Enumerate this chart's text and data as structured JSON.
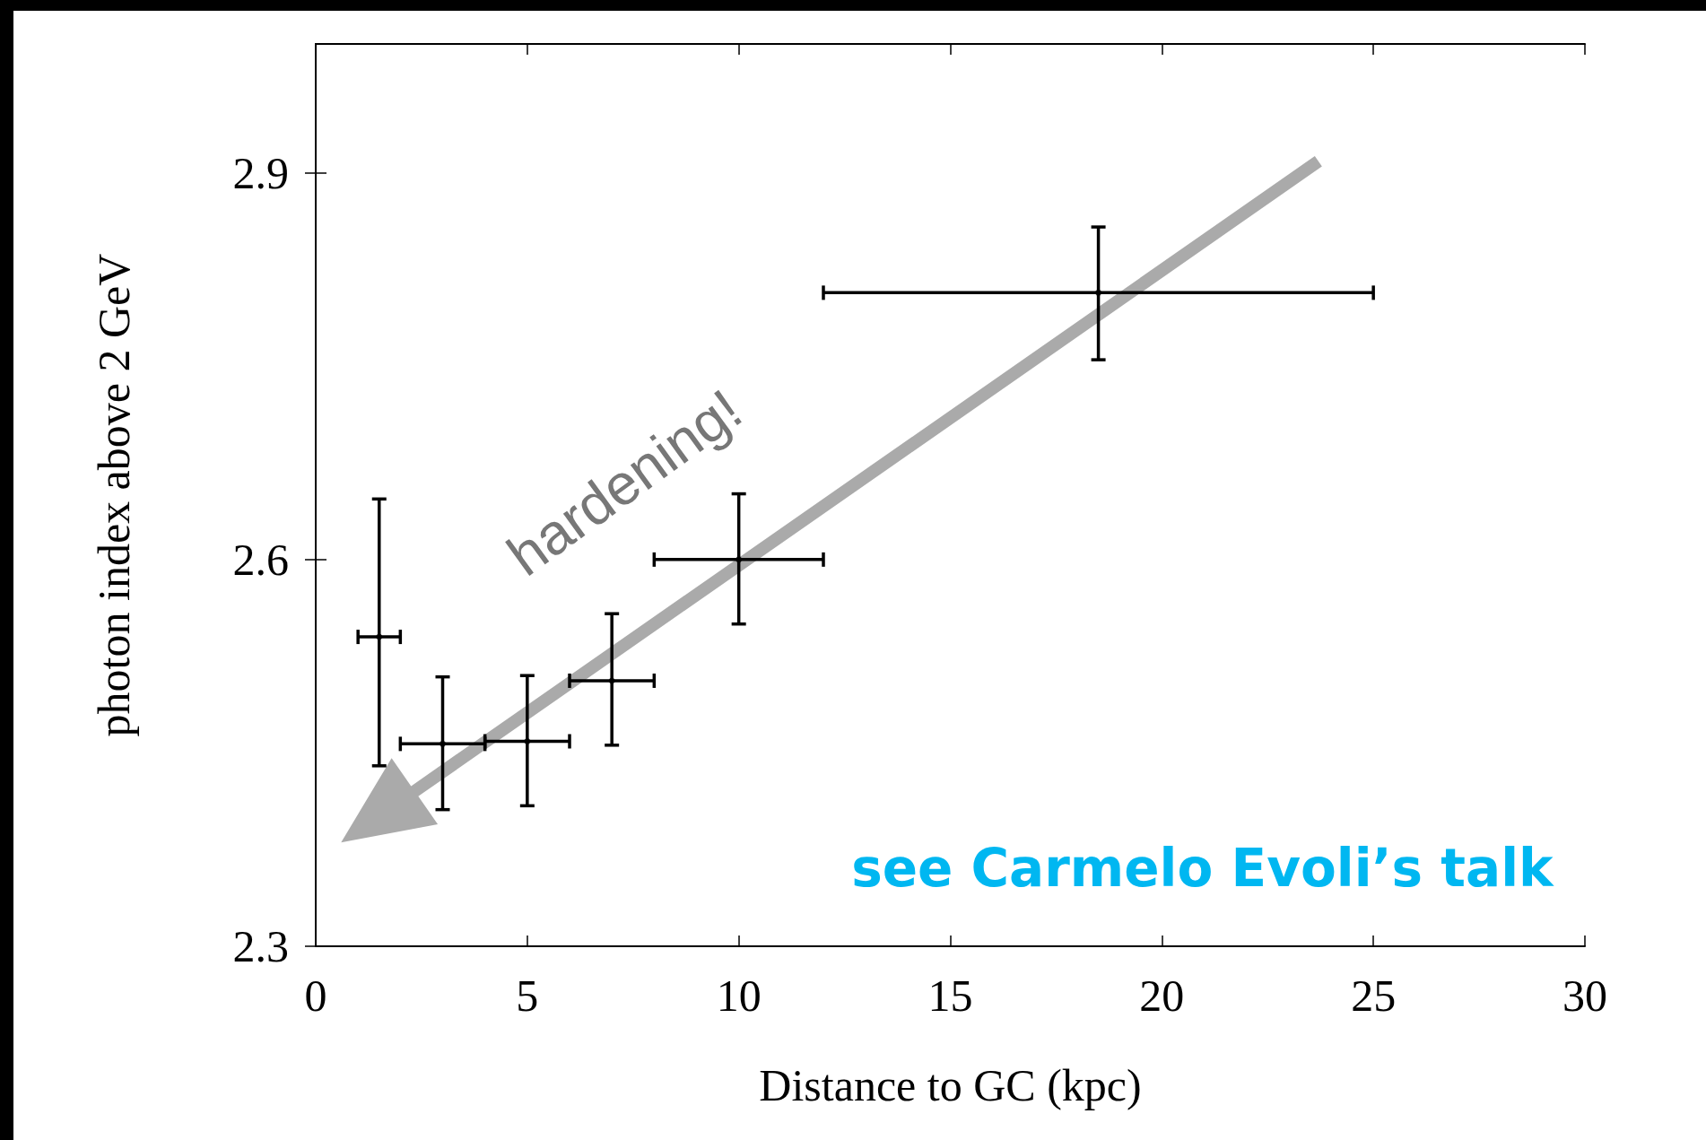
{
  "chart_data": {
    "type": "scatter",
    "xlabel": "Distance to GC (kpc)",
    "ylabel": "photon index above 2 GeV",
    "x": [
      1.5,
      3,
      5,
      7,
      10,
      18.5
    ],
    "series": [
      {
        "color": "#000000",
        "values": [
          2.54,
          2.457,
          2.459,
          2.506,
          2.6,
          2.807
        ],
        "errors": [
          [
            2.44,
            2.647
          ],
          [
            2.406,
            2.509
          ],
          [
            2.409,
            2.51
          ],
          [
            2.456,
            2.558
          ],
          [
            2.55,
            2.651
          ],
          [
            2.755,
            2.858
          ]
        ],
        "xerrors": [
          [
            1,
            2
          ],
          [
            2,
            4
          ],
          [
            4,
            6
          ],
          [
            6,
            8
          ],
          [
            8,
            12
          ],
          [
            12,
            25
          ]
        ]
      }
    ],
    "xlim": [
      0,
      30
    ],
    "xticks": [
      0,
      5,
      10,
      15,
      20,
      25,
      30
    ],
    "ylim": [
      2.3,
      3.0
    ],
    "yticks": [
      2.3,
      2.6,
      2.9
    ],
    "marker": "circle",
    "grid": false,
    "annotations": [
      "hardening!",
      "see Carmelo Evoli’s talk"
    ]
  }
}
